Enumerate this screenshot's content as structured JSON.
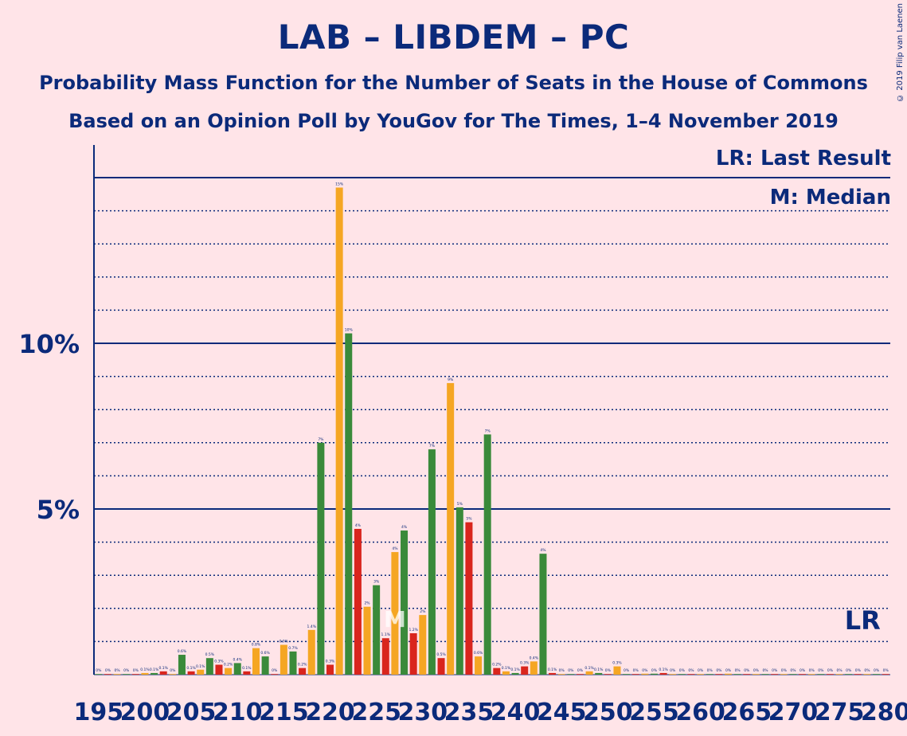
{
  "title": "LAB – LIBDEM – PC",
  "subtitle_1": "Probability Mass Function for the Number of Seats in the House of Commons",
  "subtitle_2": "Based on an Opinion Poll by YouGov for The Times, 1–4 November 2019",
  "legend": {
    "last_result": "LR: Last Result",
    "median": "M: Median"
  },
  "copyright": "© 2019 Filip van Laenen",
  "markers": {
    "median_label": "M",
    "median_seat": 227,
    "last_result_label": "LR",
    "last_result_seat": 277
  },
  "colors": {
    "background": "#FFE4E8",
    "axis_text": "#0B2A7A",
    "green": "#3A8A3A",
    "red": "#D9251D",
    "orange": "#F5A623"
  },
  "chart_data": {
    "type": "bar",
    "xlabel": "",
    "ylabel": "",
    "x_ticks": [
      195,
      200,
      205,
      210,
      215,
      220,
      225,
      230,
      235,
      240,
      245,
      250,
      255,
      260,
      265,
      270,
      275,
      280
    ],
    "y_ticks": [
      "5%",
      "10%"
    ],
    "ylim": [
      0,
      16
    ],
    "color_cycle": [
      "green",
      "red",
      "orange"
    ],
    "seats": [
      195,
      196,
      197,
      198,
      199,
      200,
      201,
      202,
      203,
      204,
      205,
      206,
      207,
      208,
      209,
      210,
      211,
      212,
      213,
      214,
      215,
      216,
      217,
      218,
      219,
      220,
      221,
      222,
      223,
      224,
      225,
      226,
      227,
      228,
      229,
      230,
      231,
      232,
      233,
      234,
      235,
      236,
      237,
      238,
      239,
      240,
      241,
      242,
      243,
      244,
      245,
      246,
      247,
      248,
      249,
      250,
      251,
      252,
      253,
      254,
      255,
      256,
      257,
      258,
      259,
      260,
      261,
      262,
      263,
      264,
      265,
      266,
      267,
      268,
      269,
      270,
      271,
      272,
      273,
      274,
      275,
      276,
      277,
      278,
      279,
      280
    ],
    "values": [
      0.02,
      0.02,
      0.02,
      0.02,
      0.02,
      0.05,
      0.05,
      0.1,
      0.02,
      0.6,
      0.1,
      0.15,
      0.5,
      0.3,
      0.2,
      0.35,
      0.1,
      0.8,
      0.55,
      0.02,
      0.9,
      0.7,
      0.2,
      1.35,
      7.0,
      0.3,
      14.7,
      10.3,
      4.4,
      2.05,
      2.7,
      1.1,
      3.7,
      4.35,
      1.25,
      1.8,
      6.8,
      0.5,
      8.8,
      5.05,
      4.6,
      0.55,
      7.25,
      0.2,
      0.1,
      0.05,
      0.25,
      0.4,
      3.65,
      0.05,
      0.02,
      0.02,
      0.02,
      0.1,
      0.05,
      0.02,
      0.25,
      0.02,
      0.02,
      0.03,
      0.03,
      0.05,
      0.02,
      0.02,
      0.02,
      0.02,
      0.02,
      0.02,
      0.03,
      0.02,
      0.02,
      0.02,
      0.02,
      0.02,
      0.02,
      0.02,
      0.02,
      0.02,
      0.02,
      0.02,
      0.02,
      0.02,
      0.02,
      0.02,
      0.02,
      0.02
    ],
    "labels": [
      "0%",
      "0%",
      "0%",
      "0%",
      "0%",
      "0.1%",
      "0.1%",
      "0.1%",
      "0%",
      "0.6%",
      "0.1%",
      "0.1%",
      "0.5%",
      "0.3%",
      "0.2%",
      "0.4%",
      "0.1%",
      "0.8%",
      "0.6%",
      "0%",
      "0.9%",
      "0.7%",
      "0.2%",
      "1.4%",
      "7%",
      "0.3%",
      "15%",
      "10%",
      "4%",
      "2%",
      "3%",
      "1.1%",
      "4%",
      "4%",
      "1.2%",
      "2%",
      "7%",
      "0.5%",
      "9%",
      "5%",
      "5%",
      "0.6%",
      "7%",
      "0.2%",
      "0.1%",
      "0.1%",
      "0.3%",
      "0.4%",
      "4%",
      "0.1%",
      "0%",
      "0%",
      "0%",
      "0.1%",
      "0.1%",
      "0%",
      "0.3%",
      "0%",
      "0%",
      "0%",
      "0%",
      "0.1%",
      "0%",
      "0%",
      "0%",
      "0%",
      "0%",
      "0%",
      "0%",
      "0%",
      "0%",
      "0%",
      "0%",
      "0%",
      "0%",
      "0%",
      "0%",
      "0%",
      "0%",
      "0%",
      "0%",
      "0%",
      "0%",
      "0%",
      "0%",
      "0%"
    ]
  }
}
